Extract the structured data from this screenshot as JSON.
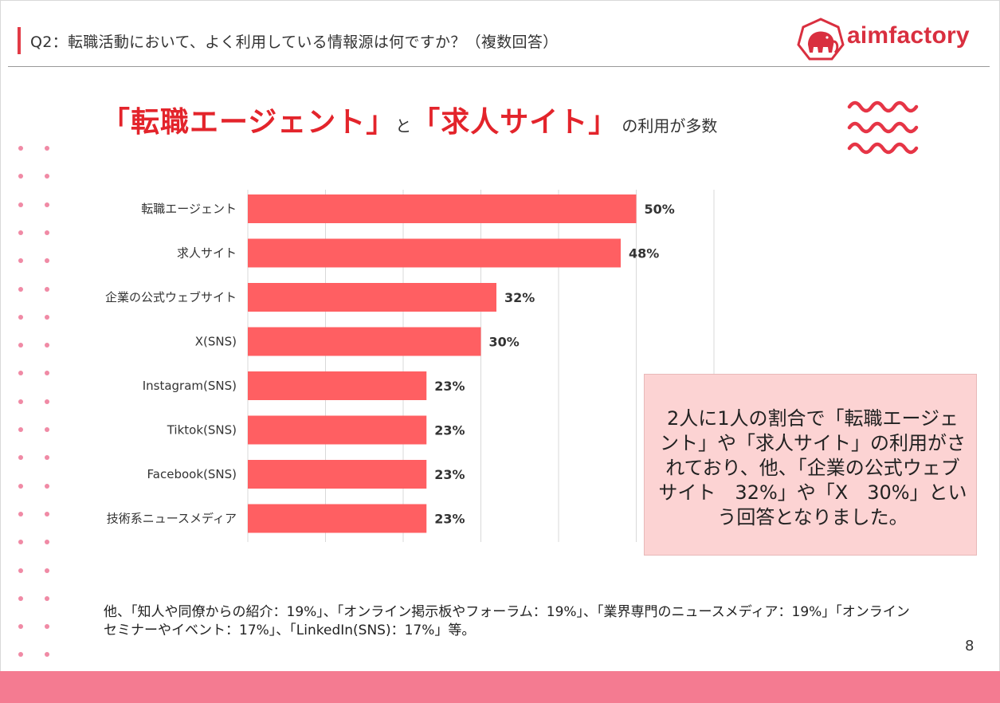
{
  "header": {
    "title": "Q2：転職活動において、よく利用している情報源は何ですか？（複数回答）"
  },
  "logo": {
    "text": "aimfactory"
  },
  "headline": {
    "part1": "「転職エージェント」",
    "connector": "と",
    "part2": "「求人サイト」",
    "suffix": "の利用が多数"
  },
  "chart_data": {
    "type": "bar",
    "orientation": "horizontal",
    "categories": [
      "転職エージェント",
      "求人サイト",
      "企業の公式ウェブサイト",
      "X(SNS)",
      "Instagram(SNS)",
      "Tiktok(SNS)",
      "Facebook(SNS)",
      "技術系ニュースメディア"
    ],
    "values": [
      50,
      48,
      32,
      30,
      23,
      23,
      23,
      23
    ],
    "value_labels": [
      "50%",
      "48%",
      "32%",
      "30%",
      "23%",
      "23%",
      "23%",
      "23%"
    ],
    "xlim": [
      0,
      60
    ],
    "grid": true,
    "bar_color": "#ff5f62"
  },
  "note": {
    "text": "2人に1人の割合で「転職エージェント」や「求人サイト」の利用がされており、他、「企業の公式ウェブサイト　32%」や「X　30%」という回答となりました。"
  },
  "footnote": {
    "text": "他、「知人や同僚からの紹介：19%」、「オンライン掲示板やフォーラム：19%」、「業界専門のニュースメディア：19%」「オンラインセミナーやイベント：17%」、「LinkedIn(SNS)：17%」等。"
  },
  "page_number": "8",
  "colors": {
    "accent": "#e3242b",
    "bar": "#ff5f62",
    "footer": "#f47b91",
    "note_bg": "#fcd3d3",
    "dots": "#f08aa5"
  }
}
